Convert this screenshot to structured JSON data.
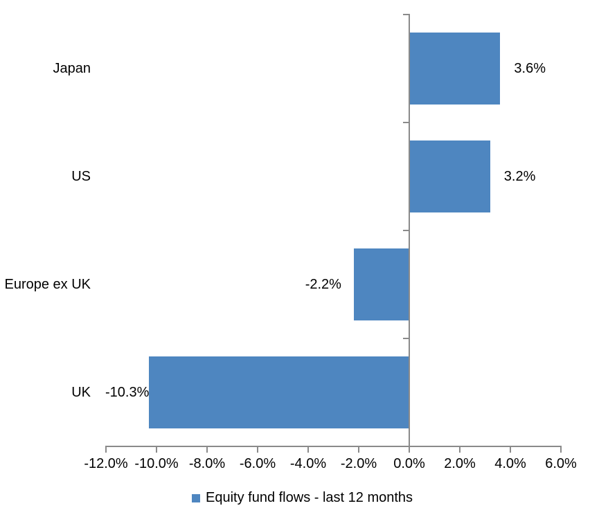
{
  "chart_data": {
    "type": "bar",
    "orientation": "horizontal",
    "categories": [
      "Japan",
      "US",
      "Europe ex UK",
      "UK"
    ],
    "series": [
      {
        "name": "Equity fund flows - last 12 months",
        "values": [
          3.6,
          3.2,
          -2.2,
          -10.3
        ],
        "value_labels": [
          "3.6%",
          "3.2%",
          "-2.2%",
          "-10.3%"
        ]
      }
    ],
    "xlim": [
      -12,
      6
    ],
    "x_ticks": [
      -12,
      -10,
      -8,
      -6,
      -4,
      -2,
      0,
      2,
      4,
      6
    ],
    "x_tick_labels": [
      "-12.0%",
      "-10.0%",
      "-8.0%",
      "-6.0%",
      "-4.0%",
      "-2.0%",
      "0.0%",
      "2.0%",
      "4.0%",
      "6.0%"
    ],
    "value_labels_position": "outside-end",
    "grid": false,
    "legend": {
      "position": "bottom",
      "label": "Equity fund flows - last 12 months"
    },
    "colors": {
      "bar": "#4E86C0",
      "axis": "#8A8A8A",
      "text": "#000000"
    }
  }
}
